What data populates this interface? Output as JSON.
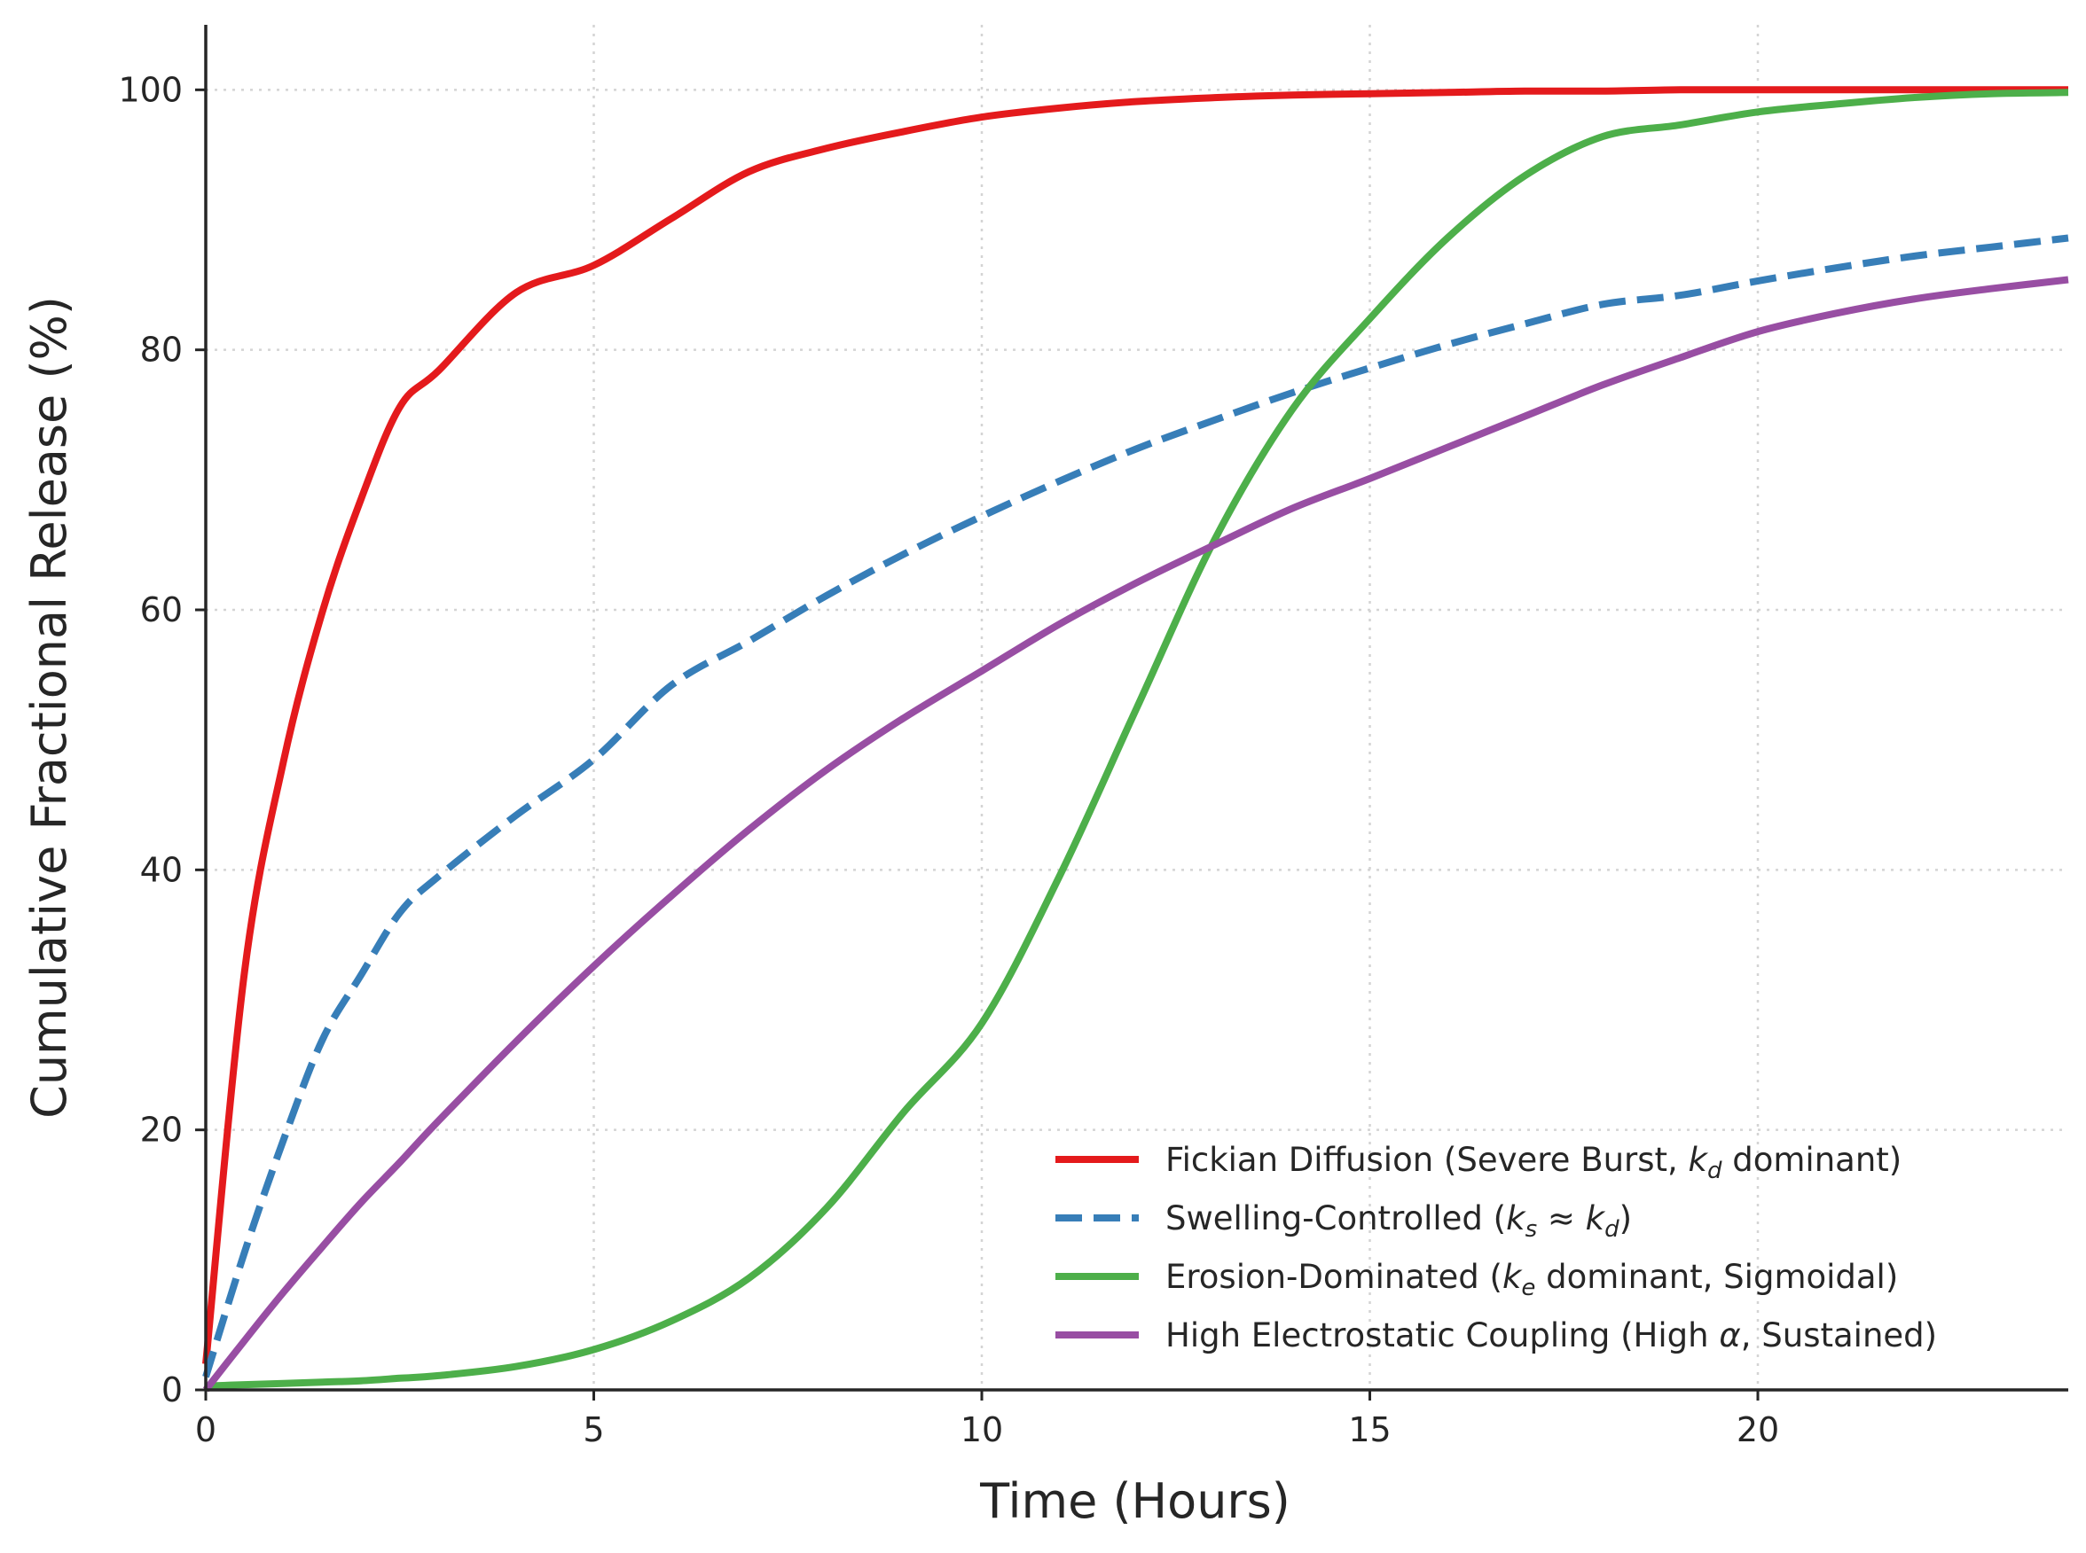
{
  "chart_data": {
    "type": "line",
    "xlabel": "Time (Hours)",
    "ylabel": "Cumulative Fractional Release (%)",
    "xlim": [
      0,
      24
    ],
    "ylim": [
      0,
      105
    ],
    "xticks": [
      0,
      5,
      10,
      15,
      20
    ],
    "yticks": [
      0,
      20,
      40,
      60,
      80,
      100
    ],
    "grid": true,
    "legend_position": "lower-right",
    "x": [
      0,
      0.5,
      1,
      1.5,
      2,
      2.5,
      3,
      4,
      5,
      6,
      7,
      8,
      9,
      10,
      11,
      12,
      13,
      14,
      15,
      16,
      17,
      18,
      19,
      20,
      21,
      22,
      23,
      24
    ],
    "series": [
      {
        "name": "Fickian Diffusion (Severe Burst, k_d dominant)",
        "legend": {
          "before": "Fickian Diffusion (Severe Burst, ",
          "sym": "k",
          "sub": "d",
          "after": " dominant)"
        },
        "color": "#e41a1c",
        "style": "solid",
        "values": [
          2,
          32.2,
          48.3,
          59.8,
          68.5,
          75.6,
          78.4,
          84.4,
          86.5,
          90.1,
          93.7,
          95.5,
          96.8,
          97.9,
          98.6,
          99.1,
          99.4,
          99.6,
          99.7,
          99.8,
          99.9,
          99.9,
          100,
          100,
          100,
          100,
          100,
          100
        ]
      },
      {
        "name": "Swelling-Controlled (k_s ≈ k_d)",
        "legend": {
          "before": "Swelling-Controlled (",
          "sym": "k",
          "sub": "s",
          "mid": " ≈ ",
          "sym2": "k",
          "sub2": "d",
          "after": ")"
        },
        "color": "#377eb8",
        "style": "dashed",
        "values": [
          1,
          10.6,
          19.2,
          26.9,
          31.9,
          36.7,
          39.5,
          44.2,
          48.5,
          54.2,
          57.6,
          61.1,
          64.3,
          67.2,
          69.9,
          72.4,
          74.6,
          76.7,
          78.6,
          80.4,
          82.0,
          83.5,
          84.2,
          85.3,
          86.3,
          87.2,
          87.9,
          88.6
        ]
      },
      {
        "name": "Erosion-Dominated (k_e dominant, Sigmoidal)",
        "legend": {
          "before": "Erosion-Dominated (",
          "sym": "k",
          "sub": "e",
          "after": " dominant, Sigmoidal)"
        },
        "color": "#4daf4a",
        "style": "solid",
        "values": [
          0.3,
          0.4,
          0.5,
          0.6,
          0.7,
          0.9,
          1.1,
          1.8,
          3.1,
          5.3,
          8.6,
          14.0,
          21.4,
          28.2,
          39.5,
          52.5,
          65.4,
          75.4,
          82.4,
          88.6,
          93.4,
          96.4,
          97.3,
          98.3,
          98.9,
          99.4,
          99.7,
          99.8
        ]
      },
      {
        "name": "High Electrostatic Coupling (High α, Sustained)",
        "legend": {
          "before": "High Electrostatic Coupling (High ",
          "greek": "α",
          "after": ", Sustained)"
        },
        "color": "#984ea3",
        "style": "solid",
        "values": [
          0,
          3.8,
          7.5,
          11.0,
          14.4,
          17.5,
          20.7,
          26.8,
          32.6,
          38.0,
          43.1,
          47.7,
          51.7,
          55.3,
          58.9,
          62.1,
          65.0,
          67.8,
          70.1,
          72.5,
          74.9,
          77.3,
          79.4,
          81.4,
          82.8,
          83.9,
          84.7,
          85.4
        ]
      }
    ]
  }
}
